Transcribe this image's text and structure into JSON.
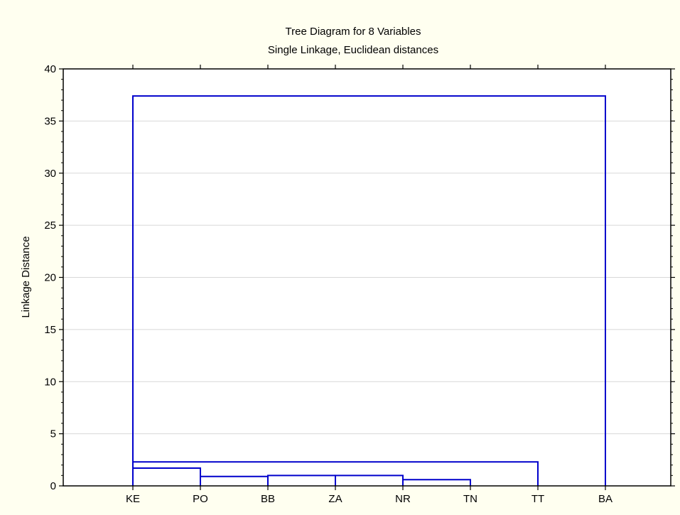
{
  "chart_data": {
    "type": "dendrogram",
    "title": "Tree Diagram for 8 Variables",
    "subtitle": "Single Linkage, Euclidean distances",
    "xlabel": "",
    "ylabel": "Linkage Distance",
    "ylim": [
      0,
      40
    ],
    "yticks": [
      0,
      5,
      10,
      15,
      20,
      25,
      30,
      35,
      40
    ],
    "grid": true,
    "leaves": [
      "KE",
      "PO",
      "BB",
      "ZA",
      "NR",
      "TN",
      "TT",
      "BA"
    ],
    "merges": [
      {
        "left": "NR",
        "right": "TN",
        "height": 0.6
      },
      {
        "left": "ZA",
        "right": "NR+TN",
        "height": 1.0
      },
      {
        "left": "BB",
        "right": "ZA+NR+TN",
        "height": 1.0
      },
      {
        "left": "PO",
        "right": "BB+ZA+NR+TN",
        "height": 0.9
      },
      {
        "left": "KE",
        "right": "PO+BB+ZA+NR+TN",
        "height": 1.7
      },
      {
        "left": "KE+PO+BB+ZA+NR+TN",
        "right": "TT",
        "height": 2.3
      },
      {
        "left": "KE+PO+BB+ZA+NR+TN+TT",
        "right": "BA",
        "height": 37.4
      }
    ],
    "line_color": "#0000cc",
    "background_color": "#fffff0"
  }
}
